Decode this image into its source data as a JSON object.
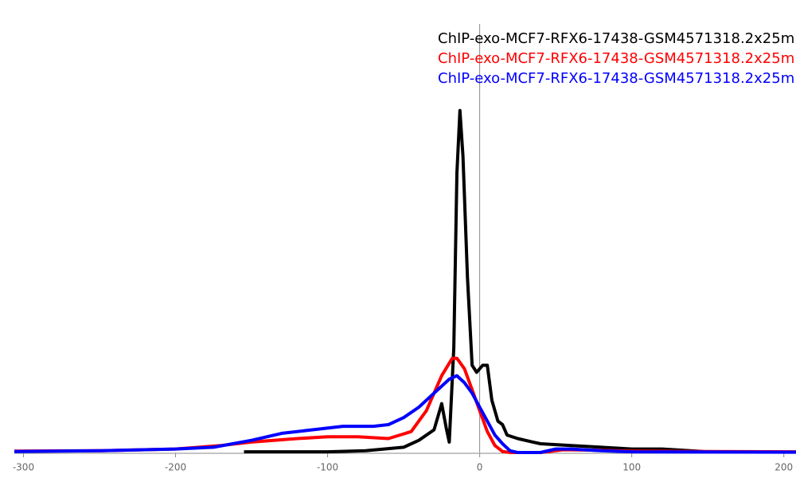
{
  "chart_data": {
    "type": "line",
    "xlim": [
      -306,
      208
    ],
    "ylim": [
      0,
      100
    ],
    "xticks": [
      -300,
      -200,
      -100,
      0,
      100,
      200
    ],
    "series": [
      {
        "name": "ChIP-exo-MCF7-RFX6-17438-GSM4571318.2x25m",
        "color": "#000000",
        "x": [
          -155,
          -100,
          -75,
          -50,
          -40,
          -30,
          -25,
          -22,
          -20,
          -17,
          -15,
          -13,
          -11,
          -8,
          -5,
          -2,
          2,
          5,
          8,
          12,
          15,
          18,
          25,
          35,
          40,
          60,
          80,
          100,
          120,
          147
        ],
        "values": [
          0.2,
          0.2,
          0.5,
          1.5,
          3.5,
          6.5,
          14,
          7,
          3,
          30,
          80,
          98,
          85,
          50,
          25,
          23,
          25,
          25,
          15,
          9,
          8,
          5,
          4,
          3,
          2.5,
          2,
          1.5,
          1,
          1,
          0.3
        ]
      },
      {
        "name": "ChIP-exo-MCF7-RFX6-17438-GSM4571318.2x25m",
        "color": "#ff0000",
        "x": [
          -306,
          -250,
          -200,
          -170,
          -150,
          -120,
          -100,
          -80,
          -60,
          -45,
          -35,
          -25,
          -18,
          -15,
          -10,
          -5,
          0,
          5,
          10,
          15,
          20,
          40,
          55,
          70,
          100,
          150,
          208
        ],
        "values": [
          0.4,
          0.5,
          1,
          2,
          3,
          4,
          4.5,
          4.5,
          4,
          6,
          12,
          22,
          27,
          27,
          24,
          18,
          12,
          6,
          2,
          0.3,
          0,
          0,
          0.8,
          0.7,
          0.4,
          0.3,
          0.2
        ]
      },
      {
        "name": "ChIP-exo-MCF7-RFX6-17438-GSM4571318.2x25m",
        "color": "#0000ff",
        "x": [
          -306,
          -250,
          -200,
          -175,
          -150,
          -130,
          -110,
          -90,
          -70,
          -60,
          -50,
          -40,
          -30,
          -20,
          -15,
          -10,
          -5,
          0,
          5,
          10,
          15,
          20,
          25,
          40,
          50,
          60,
          80,
          100,
          208
        ],
        "values": [
          0.3,
          0.5,
          1,
          1.5,
          3.5,
          5.5,
          6.5,
          7.5,
          7.5,
          8,
          10,
          13,
          17,
          21,
          22,
          20,
          17,
          13,
          9,
          5,
          2.5,
          0.5,
          0,
          0,
          1,
          1,
          0.5,
          0.2,
          0.1
        ]
      }
    ]
  }
}
